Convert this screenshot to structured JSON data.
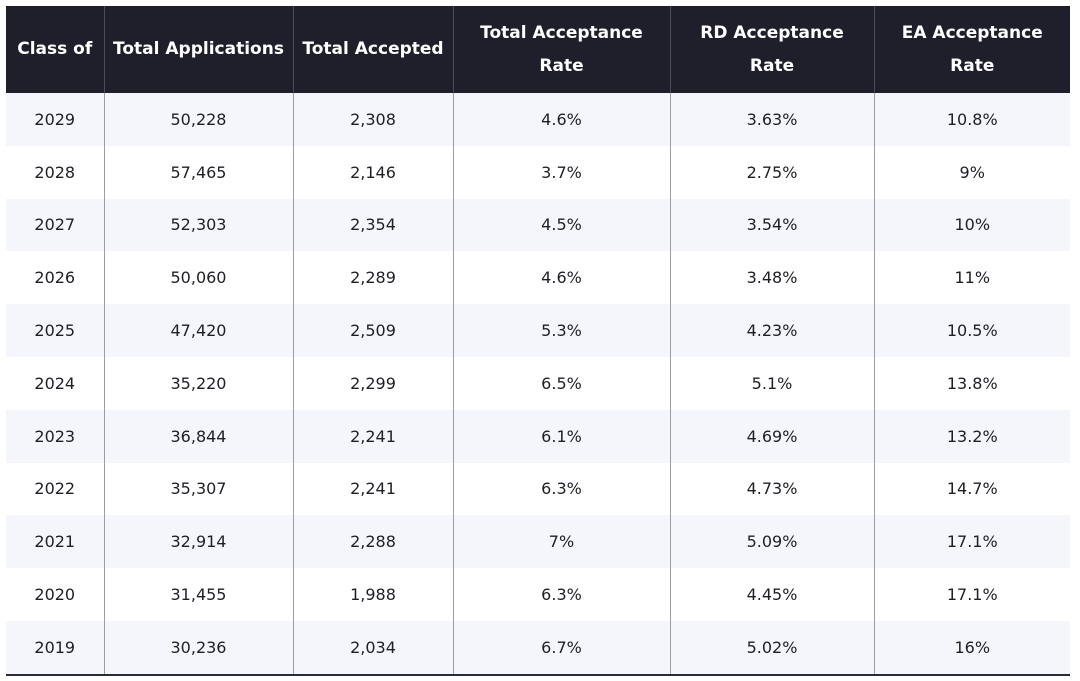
{
  "table": {
    "headers": [
      "Class of",
      "Total Applications",
      "Total Accepted",
      "Total Acceptance Rate",
      "RD Acceptance Rate",
      "EA Acceptance Rate"
    ],
    "rows": [
      [
        "2029",
        "50,228",
        "2,308",
        "4.6%",
        "3.63%",
        "10.8%"
      ],
      [
        "2028",
        "57,465",
        "2,146",
        "3.7%",
        "2.75%",
        "9%"
      ],
      [
        "2027",
        "52,303",
        "2,354",
        "4.5%",
        "3.54%",
        "10%"
      ],
      [
        "2026",
        "50,060",
        "2,289",
        "4.6%",
        "3.48%",
        "11%"
      ],
      [
        "2025",
        "47,420",
        "2,509",
        "5.3%",
        "4.23%",
        "10.5%"
      ],
      [
        "2024",
        "35,220",
        "2,299",
        "6.5%",
        "5.1%",
        "13.8%"
      ],
      [
        "2023",
        "36,844",
        "2,241",
        "6.1%",
        "4.69%",
        "13.2%"
      ],
      [
        "2022",
        "35,307",
        "2,241",
        "6.3%",
        "4.73%",
        "14.7%"
      ],
      [
        "2021",
        "32,914",
        "2,288",
        "7%",
        "5.09%",
        "17.1%"
      ],
      [
        "2020",
        "31,455",
        "1,988",
        "6.3%",
        "4.45%",
        "17.1%"
      ],
      [
        "2019",
        "30,236",
        "2,034",
        "6.7%",
        "5.02%",
        "16%"
      ]
    ]
  },
  "colors": {
    "header_bg": "#1e1f2b",
    "header_text": "#ffffff",
    "row_alt_bg": "#f4f6fb",
    "row_bg": "#ffffff"
  }
}
